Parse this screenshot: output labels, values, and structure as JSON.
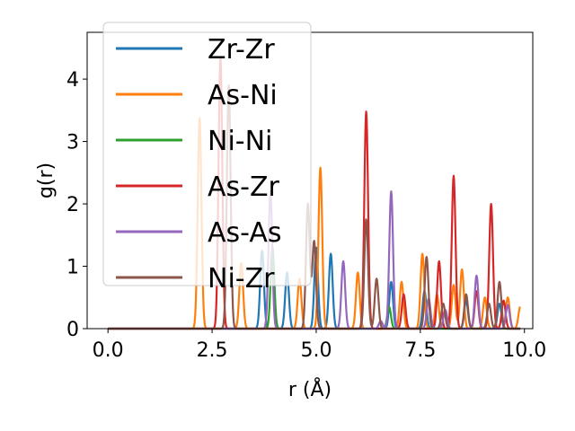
{
  "chart_data": {
    "type": "line",
    "title": "",
    "xlabel": "r (Å)",
    "ylabel": "g(r)",
    "xlim": [
      -0.5,
      10.2
    ],
    "ylim": [
      0,
      4.75
    ],
    "xticks": [
      0.0,
      2.5,
      5.0,
      7.5,
      10.0
    ],
    "xtick_labels": [
      "0.0",
      "2.5",
      "5.0",
      "7.5",
      "10.0"
    ],
    "yticks": [
      0,
      1,
      2,
      3,
      4
    ],
    "ytick_labels": [
      "0",
      "1",
      "2",
      "3",
      "4"
    ],
    "grid": false,
    "legend_position": "upper-left",
    "peak_width": 0.045,
    "series": [
      {
        "name": "Zr-Zr",
        "color": "#1f77b4",
        "peaks": [
          [
            3.7,
            1.25
          ],
          [
            4.3,
            0.9
          ],
          [
            5.0,
            1.3
          ],
          [
            5.35,
            1.2
          ],
          [
            6.8,
            0.75
          ],
          [
            7.6,
            0.6
          ],
          [
            8.6,
            0.45
          ],
          [
            9.4,
            0.4
          ]
        ]
      },
      {
        "name": "As-Ni",
        "color": "#ff7f0e",
        "peaks": [
          [
            2.2,
            3.38
          ],
          [
            3.2,
            1.05
          ],
          [
            4.6,
            0.8
          ],
          [
            5.1,
            2.58
          ],
          [
            6.0,
            0.9
          ],
          [
            7.05,
            0.75
          ],
          [
            7.55,
            1.2
          ],
          [
            7.9,
            0.55
          ],
          [
            8.3,
            0.7
          ],
          [
            8.5,
            0.95
          ],
          [
            9.05,
            0.5
          ],
          [
            9.6,
            0.5
          ],
          [
            9.9,
            0.35
          ]
        ]
      },
      {
        "name": "Ni-Ni",
        "color": "#2ca02c",
        "peaks": [
          [
            3.95,
            1.3
          ],
          [
            6.75,
            0.35
          ]
        ]
      },
      {
        "name": "As-Zr",
        "color": "#d62728",
        "peaks": [
          [
            2.7,
            4.35
          ],
          [
            6.2,
            3.48
          ],
          [
            7.1,
            0.55
          ],
          [
            7.95,
            1.08
          ],
          [
            8.3,
            2.45
          ],
          [
            8.85,
            0.6
          ],
          [
            9.2,
            2.0
          ],
          [
            9.5,
            0.45
          ]
        ]
      },
      {
        "name": "As-As",
        "color": "#9467bd",
        "peaks": [
          [
            3.9,
            2.2
          ],
          [
            5.65,
            1.08
          ],
          [
            6.55,
            0.12
          ],
          [
            6.8,
            2.2
          ],
          [
            7.7,
            0.48
          ],
          [
            8.1,
            0.3
          ],
          [
            8.85,
            0.85
          ],
          [
            9.6,
            0.38
          ]
        ]
      },
      {
        "name": "Ni-Zr",
        "color": "#8c564b",
        "peaks": [
          [
            2.9,
            3.9
          ],
          [
            4.8,
            2.0
          ],
          [
            4.95,
            1.4
          ],
          [
            6.2,
            1.75
          ],
          [
            6.45,
            0.8
          ],
          [
            7.65,
            1.15
          ],
          [
            8.05,
            0.4
          ],
          [
            8.6,
            0.55
          ],
          [
            9.15,
            0.4
          ],
          [
            9.4,
            0.75
          ]
        ]
      }
    ]
  }
}
